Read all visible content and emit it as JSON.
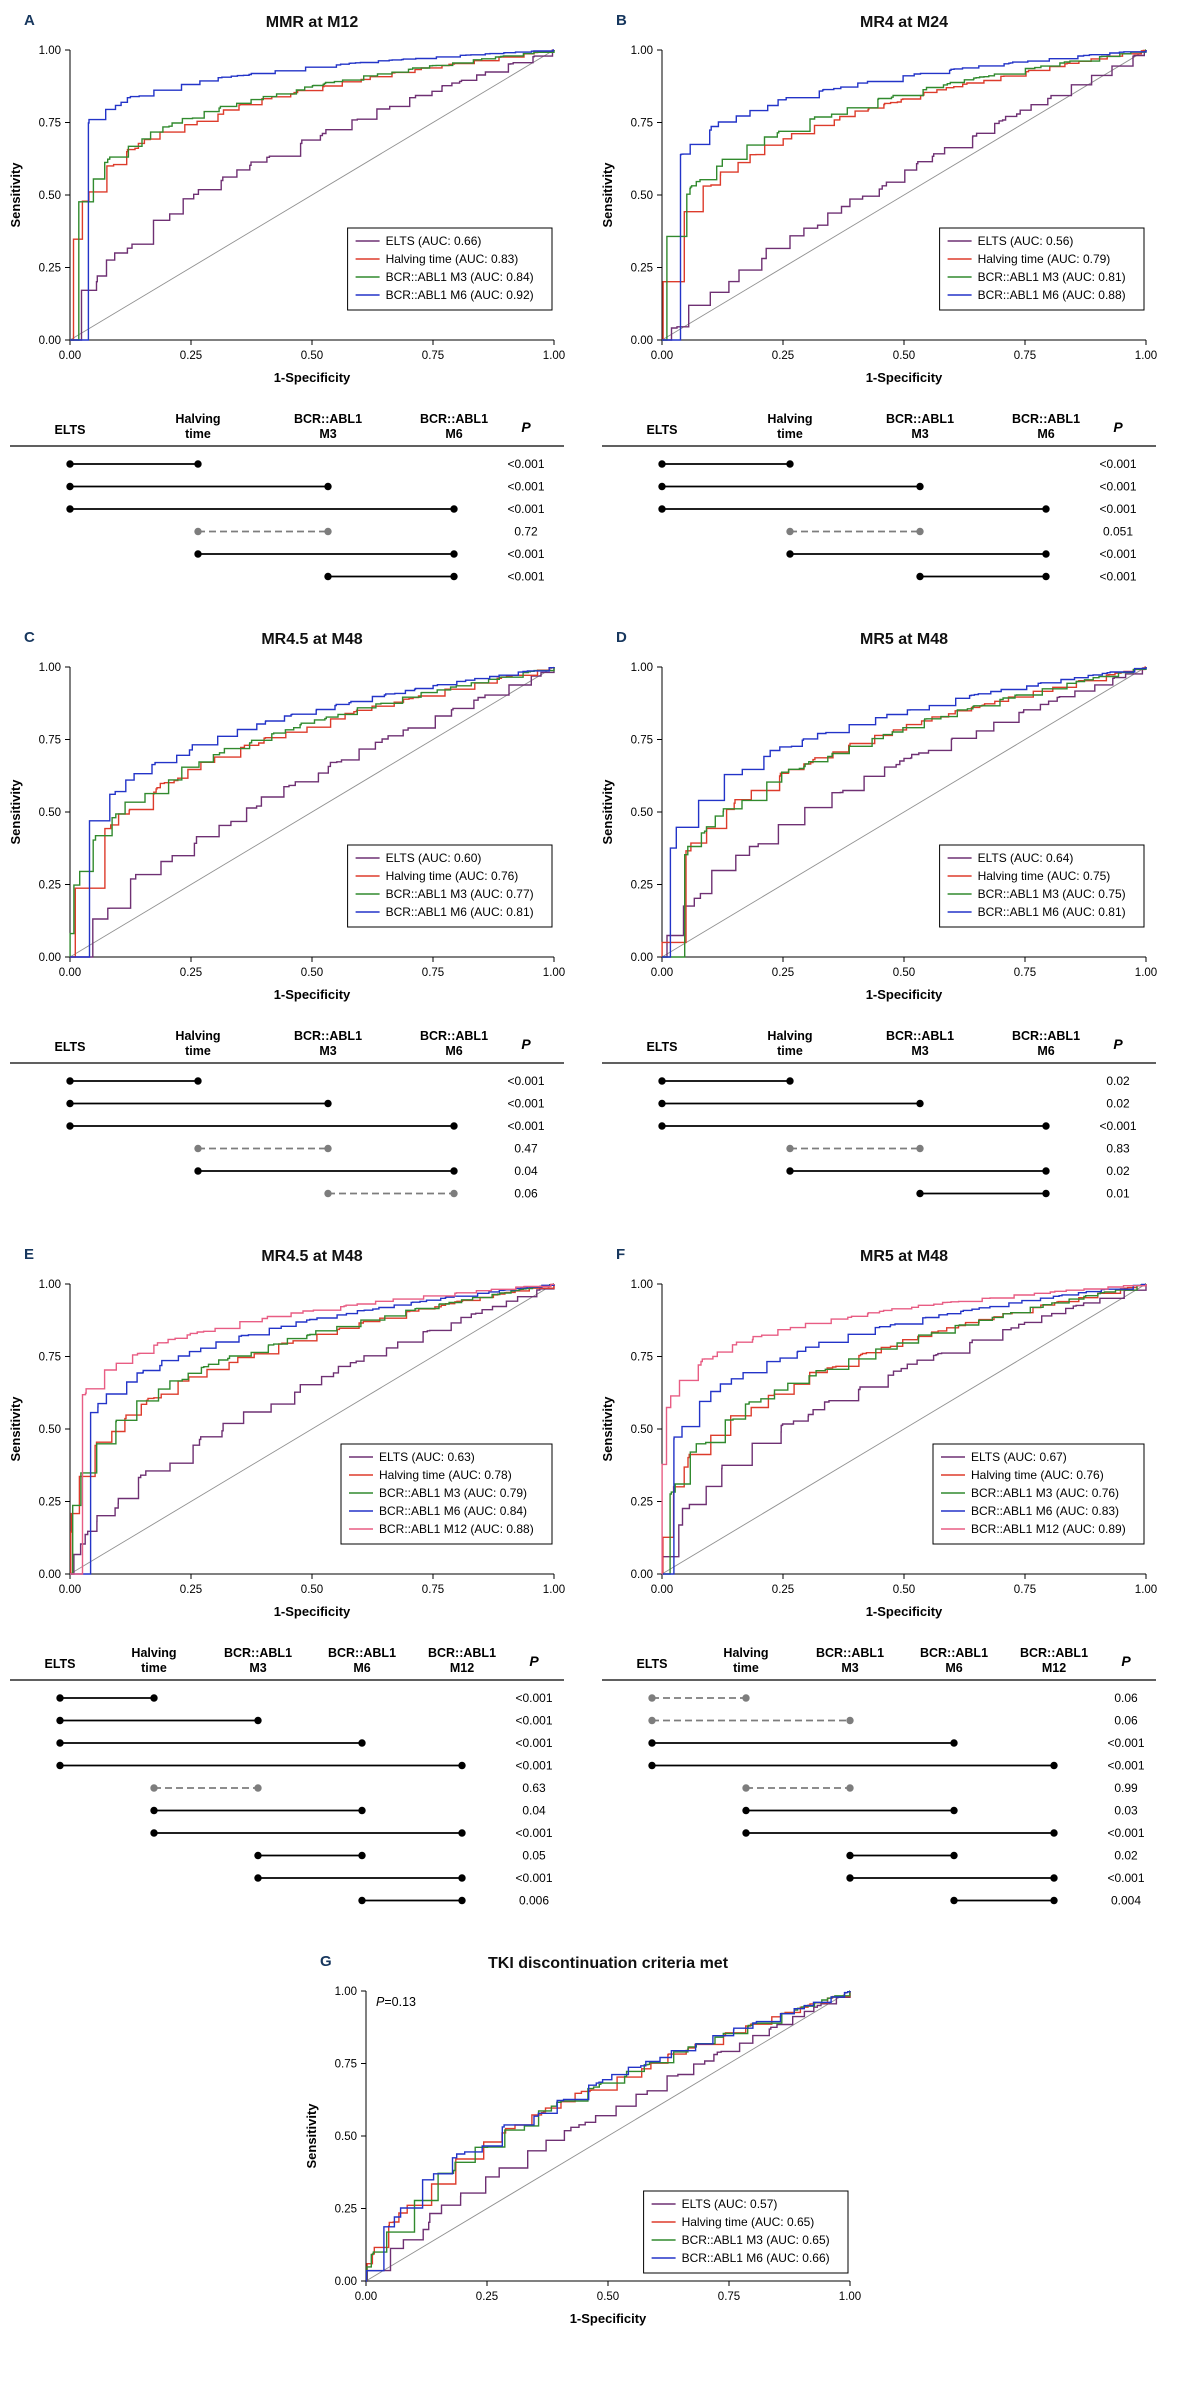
{
  "colors": {
    "elts": "#6f3073",
    "halving_time": "#dd3b2b",
    "bcr_abl1_m3": "#318a2e",
    "bcr_abl1_m6": "#2334c8",
    "bcr_abl1_m12": "#e85d84",
    "reference_line": "#909090",
    "dashed_comparison": "#7d7d7d",
    "panel_letter": "#17375e"
  },
  "chart_data": [
    {
      "panel": "A",
      "type": "line",
      "subtype": "roc_curve",
      "title": "MMR at M12",
      "xlabel": "1-Specificity",
      "ylabel": "Sensitivity",
      "xlim": [
        0,
        1
      ],
      "ylim": [
        0,
        1
      ],
      "xticks": [
        "0.00",
        "0.25",
        "0.50",
        "0.75",
        "1.00"
      ],
      "yticks": [
        "0.00",
        "0.25",
        "0.50",
        "0.75",
        "1.00"
      ],
      "reference_diagonal": true,
      "legend_position": "bottom-right",
      "annotation": null,
      "series": [
        {
          "name": "ELTS",
          "auc": 0.66,
          "legend_label": "ELTS (AUC: 0.66)",
          "color": "#6f3073"
        },
        {
          "name": "Halving time",
          "auc": 0.83,
          "legend_label": "Halving time (AUC: 0.83)",
          "color": "#dd3b2b"
        },
        {
          "name": "BCR::ABL1 M3",
          "auc": 0.84,
          "legend_label": "BCR::ABL1 M3 (AUC: 0.84)",
          "color": "#318a2e"
        },
        {
          "name": "BCR::ABL1 M6",
          "auc": 0.92,
          "legend_label": "BCR::ABL1 M6 (AUC: 0.92)",
          "color": "#2334c8"
        }
      ],
      "comparison_table": {
        "columns": [
          [
            "ELTS"
          ],
          [
            "Halving",
            "time"
          ],
          [
            "BCR::ABL1",
            "M3"
          ],
          [
            "BCR::ABL1",
            "M6"
          ]
        ],
        "p_label": "P",
        "rows": [
          {
            "from": 0,
            "to": 1,
            "p": "<0.001",
            "style": "solid"
          },
          {
            "from": 0,
            "to": 2,
            "p": "<0.001",
            "style": "solid"
          },
          {
            "from": 0,
            "to": 3,
            "p": "<0.001",
            "style": "solid"
          },
          {
            "from": 1,
            "to": 2,
            "p": "0.72",
            "style": "dashed"
          },
          {
            "from": 1,
            "to": 3,
            "p": "<0.001",
            "style": "solid"
          },
          {
            "from": 2,
            "to": 3,
            "p": "<0.001",
            "style": "solid"
          }
        ]
      }
    },
    {
      "panel": "B",
      "type": "line",
      "subtype": "roc_curve",
      "title": "MR4 at M24",
      "xlabel": "1-Specificity",
      "ylabel": "Sensitivity",
      "xlim": [
        0,
        1
      ],
      "ylim": [
        0,
        1
      ],
      "xticks": [
        "0.00",
        "0.25",
        "0.50",
        "0.75",
        "1.00"
      ],
      "yticks": [
        "0.00",
        "0.25",
        "0.50",
        "0.75",
        "1.00"
      ],
      "reference_diagonal": true,
      "legend_position": "bottom-right",
      "annotation": null,
      "series": [
        {
          "name": "ELTS",
          "auc": 0.56,
          "legend_label": "ELTS (AUC: 0.56)",
          "color": "#6f3073"
        },
        {
          "name": "Halving time",
          "auc": 0.79,
          "legend_label": "Halving time (AUC: 0.79)",
          "color": "#dd3b2b"
        },
        {
          "name": "BCR::ABL1 M3",
          "auc": 0.81,
          "legend_label": "BCR::ABL1 M3 (AUC: 0.81)",
          "color": "#318a2e"
        },
        {
          "name": "BCR::ABL1 M6",
          "auc": 0.88,
          "legend_label": "BCR::ABL1 M6 (AUC: 0.88)",
          "color": "#2334c8"
        }
      ],
      "comparison_table": {
        "columns": [
          [
            "ELTS"
          ],
          [
            "Halving",
            "time"
          ],
          [
            "BCR::ABL1",
            "M3"
          ],
          [
            "BCR::ABL1",
            "M6"
          ]
        ],
        "p_label": "P",
        "rows": [
          {
            "from": 0,
            "to": 1,
            "p": "<0.001",
            "style": "solid"
          },
          {
            "from": 0,
            "to": 2,
            "p": "<0.001",
            "style": "solid"
          },
          {
            "from": 0,
            "to": 3,
            "p": "<0.001",
            "style": "solid"
          },
          {
            "from": 1,
            "to": 2,
            "p": "0.051",
            "style": "dashed"
          },
          {
            "from": 1,
            "to": 3,
            "p": "<0.001",
            "style": "solid"
          },
          {
            "from": 2,
            "to": 3,
            "p": "<0.001",
            "style": "solid"
          }
        ]
      }
    },
    {
      "panel": "C",
      "type": "line",
      "subtype": "roc_curve",
      "title": "MR4.5 at M48",
      "xlabel": "1-Specificity",
      "ylabel": "Sensitivity",
      "xlim": [
        0,
        1
      ],
      "ylim": [
        0,
        1
      ],
      "xticks": [
        "0.00",
        "0.25",
        "0.50",
        "0.75",
        "1.00"
      ],
      "yticks": [
        "0.00",
        "0.25",
        "0.50",
        "0.75",
        "1.00"
      ],
      "reference_diagonal": true,
      "legend_position": "bottom-right",
      "annotation": null,
      "series": [
        {
          "name": "ELTS",
          "auc": 0.6,
          "legend_label": "ELTS (AUC: 0.60)",
          "color": "#6f3073"
        },
        {
          "name": "Halving time",
          "auc": 0.76,
          "legend_label": "Halving time (AUC: 0.76)",
          "color": "#dd3b2b"
        },
        {
          "name": "BCR::ABL1 M3",
          "auc": 0.77,
          "legend_label": "BCR::ABL1 M3 (AUC: 0.77)",
          "color": "#318a2e"
        },
        {
          "name": "BCR::ABL1 M6",
          "auc": 0.81,
          "legend_label": "BCR::ABL1 M6 (AUC: 0.81)",
          "color": "#2334c8"
        }
      ],
      "comparison_table": {
        "columns": [
          [
            "ELTS"
          ],
          [
            "Halving",
            "time"
          ],
          [
            "BCR::ABL1",
            "M3"
          ],
          [
            "BCR::ABL1",
            "M6"
          ]
        ],
        "p_label": "P",
        "rows": [
          {
            "from": 0,
            "to": 1,
            "p": "<0.001",
            "style": "solid"
          },
          {
            "from": 0,
            "to": 2,
            "p": "<0.001",
            "style": "solid"
          },
          {
            "from": 0,
            "to": 3,
            "p": "<0.001",
            "style": "solid"
          },
          {
            "from": 1,
            "to": 2,
            "p": "0.47",
            "style": "dashed"
          },
          {
            "from": 1,
            "to": 3,
            "p": "0.04",
            "style": "solid"
          },
          {
            "from": 2,
            "to": 3,
            "p": "0.06",
            "style": "dashed"
          }
        ]
      }
    },
    {
      "panel": "D",
      "type": "line",
      "subtype": "roc_curve",
      "title": "MR5 at M48",
      "xlabel": "1-Specificity",
      "ylabel": "Sensitivity",
      "xlim": [
        0,
        1
      ],
      "ylim": [
        0,
        1
      ],
      "xticks": [
        "0.00",
        "0.25",
        "0.50",
        "0.75",
        "1.00"
      ],
      "yticks": [
        "0.00",
        "0.25",
        "0.50",
        "0.75",
        "1.00"
      ],
      "reference_diagonal": true,
      "legend_position": "bottom-right",
      "annotation": null,
      "series": [
        {
          "name": "ELTS",
          "auc": 0.64,
          "legend_label": "ELTS (AUC: 0.64)",
          "color": "#6f3073"
        },
        {
          "name": "Halving time",
          "auc": 0.75,
          "legend_label": "Halving time (AUC: 0.75)",
          "color": "#dd3b2b"
        },
        {
          "name": "BCR::ABL1 M3",
          "auc": 0.75,
          "legend_label": "BCR::ABL1 M3 (AUC: 0.75)",
          "color": "#318a2e"
        },
        {
          "name": "BCR::ABL1 M6",
          "auc": 0.81,
          "legend_label": "BCR::ABL1 M6 (AUC: 0.81)",
          "color": "#2334c8"
        }
      ],
      "comparison_table": {
        "columns": [
          [
            "ELTS"
          ],
          [
            "Halving",
            "time"
          ],
          [
            "BCR::ABL1",
            "M3"
          ],
          [
            "BCR::ABL1",
            "M6"
          ]
        ],
        "p_label": "P",
        "rows": [
          {
            "from": 0,
            "to": 1,
            "p": "0.02",
            "style": "solid"
          },
          {
            "from": 0,
            "to": 2,
            "p": "0.02",
            "style": "solid"
          },
          {
            "from": 0,
            "to": 3,
            "p": "<0.001",
            "style": "solid"
          },
          {
            "from": 1,
            "to": 2,
            "p": "0.83",
            "style": "dashed"
          },
          {
            "from": 1,
            "to": 3,
            "p": "0.02",
            "style": "solid"
          },
          {
            "from": 2,
            "to": 3,
            "p": "0.01",
            "style": "solid"
          }
        ]
      }
    },
    {
      "panel": "E",
      "type": "line",
      "subtype": "roc_curve",
      "title": "MR4.5 at M48",
      "xlabel": "1-Specificity",
      "ylabel": "Sensitivity",
      "xlim": [
        0,
        1
      ],
      "ylim": [
        0,
        1
      ],
      "xticks": [
        "0.00",
        "0.25",
        "0.50",
        "0.75",
        "1.00"
      ],
      "yticks": [
        "0.00",
        "0.25",
        "0.50",
        "0.75",
        "1.00"
      ],
      "reference_diagonal": true,
      "legend_position": "bottom-right",
      "annotation": null,
      "series": [
        {
          "name": "ELTS",
          "auc": 0.63,
          "legend_label": "ELTS (AUC: 0.63)",
          "color": "#6f3073"
        },
        {
          "name": "Halving time",
          "auc": 0.78,
          "legend_label": "Halving time (AUC: 0.78)",
          "color": "#dd3b2b"
        },
        {
          "name": "BCR::ABL1 M3",
          "auc": 0.79,
          "legend_label": "BCR::ABL1 M3 (AUC: 0.79)",
          "color": "#318a2e"
        },
        {
          "name": "BCR::ABL1 M6",
          "auc": 0.84,
          "legend_label": "BCR::ABL1 M6 (AUC: 0.84)",
          "color": "#2334c8"
        },
        {
          "name": "BCR::ABL1 M12",
          "auc": 0.88,
          "legend_label": "BCR::ABL1 M12 (AUC: 0.88)",
          "color": "#e85d84"
        }
      ],
      "comparison_table": {
        "columns": [
          [
            "ELTS"
          ],
          [
            "Halving",
            "time"
          ],
          [
            "BCR::ABL1",
            "M3"
          ],
          [
            "BCR::ABL1",
            "M6"
          ],
          [
            "BCR::ABL1",
            "M12"
          ]
        ],
        "p_label": "P",
        "rows": [
          {
            "from": 0,
            "to": 1,
            "p": "<0.001",
            "style": "solid"
          },
          {
            "from": 0,
            "to": 2,
            "p": "<0.001",
            "style": "solid"
          },
          {
            "from": 0,
            "to": 3,
            "p": "<0.001",
            "style": "solid"
          },
          {
            "from": 0,
            "to": 4,
            "p": "<0.001",
            "style": "solid"
          },
          {
            "from": 1,
            "to": 2,
            "p": "0.63",
            "style": "dashed"
          },
          {
            "from": 1,
            "to": 3,
            "p": "0.04",
            "style": "solid"
          },
          {
            "from": 1,
            "to": 4,
            "p": "<0.001",
            "style": "solid"
          },
          {
            "from": 2,
            "to": 3,
            "p": "0.05",
            "style": "solid"
          },
          {
            "from": 2,
            "to": 4,
            "p": "<0.001",
            "style": "solid"
          },
          {
            "from": 3,
            "to": 4,
            "p": "0.006",
            "style": "solid"
          }
        ]
      }
    },
    {
      "panel": "F",
      "type": "line",
      "subtype": "roc_curve",
      "title": "MR5 at M48",
      "xlabel": "1-Specificity",
      "ylabel": "Sensitivity",
      "xlim": [
        0,
        1
      ],
      "ylim": [
        0,
        1
      ],
      "xticks": [
        "0.00",
        "0.25",
        "0.50",
        "0.75",
        "1.00"
      ],
      "yticks": [
        "0.00",
        "0.25",
        "0.50",
        "0.75",
        "1.00"
      ],
      "reference_diagonal": true,
      "legend_position": "bottom-right",
      "annotation": null,
      "series": [
        {
          "name": "ELTS",
          "auc": 0.67,
          "legend_label": "ELTS (AUC: 0.67)",
          "color": "#6f3073"
        },
        {
          "name": "Halving time",
          "auc": 0.76,
          "legend_label": "Halving time (AUC: 0.76)",
          "color": "#dd3b2b"
        },
        {
          "name": "BCR::ABL1 M3",
          "auc": 0.76,
          "legend_label": "BCR::ABL1 M3 (AUC: 0.76)",
          "color": "#318a2e"
        },
        {
          "name": "BCR::ABL1 M6",
          "auc": 0.83,
          "legend_label": "BCR::ABL1 M6 (AUC: 0.83)",
          "color": "#2334c8"
        },
        {
          "name": "BCR::ABL1 M12",
          "auc": 0.89,
          "legend_label": "BCR::ABL1 M12 (AUC: 0.89)",
          "color": "#e85d84"
        }
      ],
      "comparison_table": {
        "columns": [
          [
            "ELTS"
          ],
          [
            "Halving",
            "time"
          ],
          [
            "BCR::ABL1",
            "M3"
          ],
          [
            "BCR::ABL1",
            "M6"
          ],
          [
            "BCR::ABL1",
            "M12"
          ]
        ],
        "p_label": "P",
        "rows": [
          {
            "from": 0,
            "to": 1,
            "p": "0.06",
            "style": "dashed"
          },
          {
            "from": 0,
            "to": 2,
            "p": "0.06",
            "style": "dashed"
          },
          {
            "from": 0,
            "to": 3,
            "p": "<0.001",
            "style": "solid"
          },
          {
            "from": 0,
            "to": 4,
            "p": "<0.001",
            "style": "solid"
          },
          {
            "from": 1,
            "to": 2,
            "p": "0.99",
            "style": "dashed"
          },
          {
            "from": 1,
            "to": 3,
            "p": "0.03",
            "style": "solid"
          },
          {
            "from": 1,
            "to": 4,
            "p": "<0.001",
            "style": "solid"
          },
          {
            "from": 2,
            "to": 3,
            "p": "0.02",
            "style": "solid"
          },
          {
            "from": 2,
            "to": 4,
            "p": "<0.001",
            "style": "solid"
          },
          {
            "from": 3,
            "to": 4,
            "p": "0.004",
            "style": "solid"
          }
        ]
      }
    },
    {
      "panel": "G",
      "type": "line",
      "subtype": "roc_curve",
      "title": "TKI discontinuation criteria met",
      "xlabel": "1-Specificity",
      "ylabel": "Sensitivity",
      "xlim": [
        0,
        1
      ],
      "ylim": [
        0,
        1
      ],
      "xticks": [
        "0.00",
        "0.25",
        "0.50",
        "0.75",
        "1.00"
      ],
      "yticks": [
        "0.00",
        "0.25",
        "0.50",
        "0.75",
        "1.00"
      ],
      "reference_diagonal": true,
      "legend_position": "bottom-right",
      "annotation": "P=0.13",
      "series": [
        {
          "name": "ELTS",
          "auc": 0.57,
          "legend_label": "ELTS (AUC: 0.57)",
          "color": "#6f3073"
        },
        {
          "name": "Halving time",
          "auc": 0.65,
          "legend_label": "Halving time (AUC: 0.65)",
          "color": "#dd3b2b"
        },
        {
          "name": "BCR::ABL1 M3",
          "auc": 0.65,
          "legend_label": "BCR::ABL1 M3 (AUC: 0.65)",
          "color": "#318a2e"
        },
        {
          "name": "BCR::ABL1 M6",
          "auc": 0.66,
          "legend_label": "BCR::ABL1 M6 (AUC: 0.66)",
          "color": "#2334c8"
        }
      ],
      "comparison_table": null
    }
  ]
}
